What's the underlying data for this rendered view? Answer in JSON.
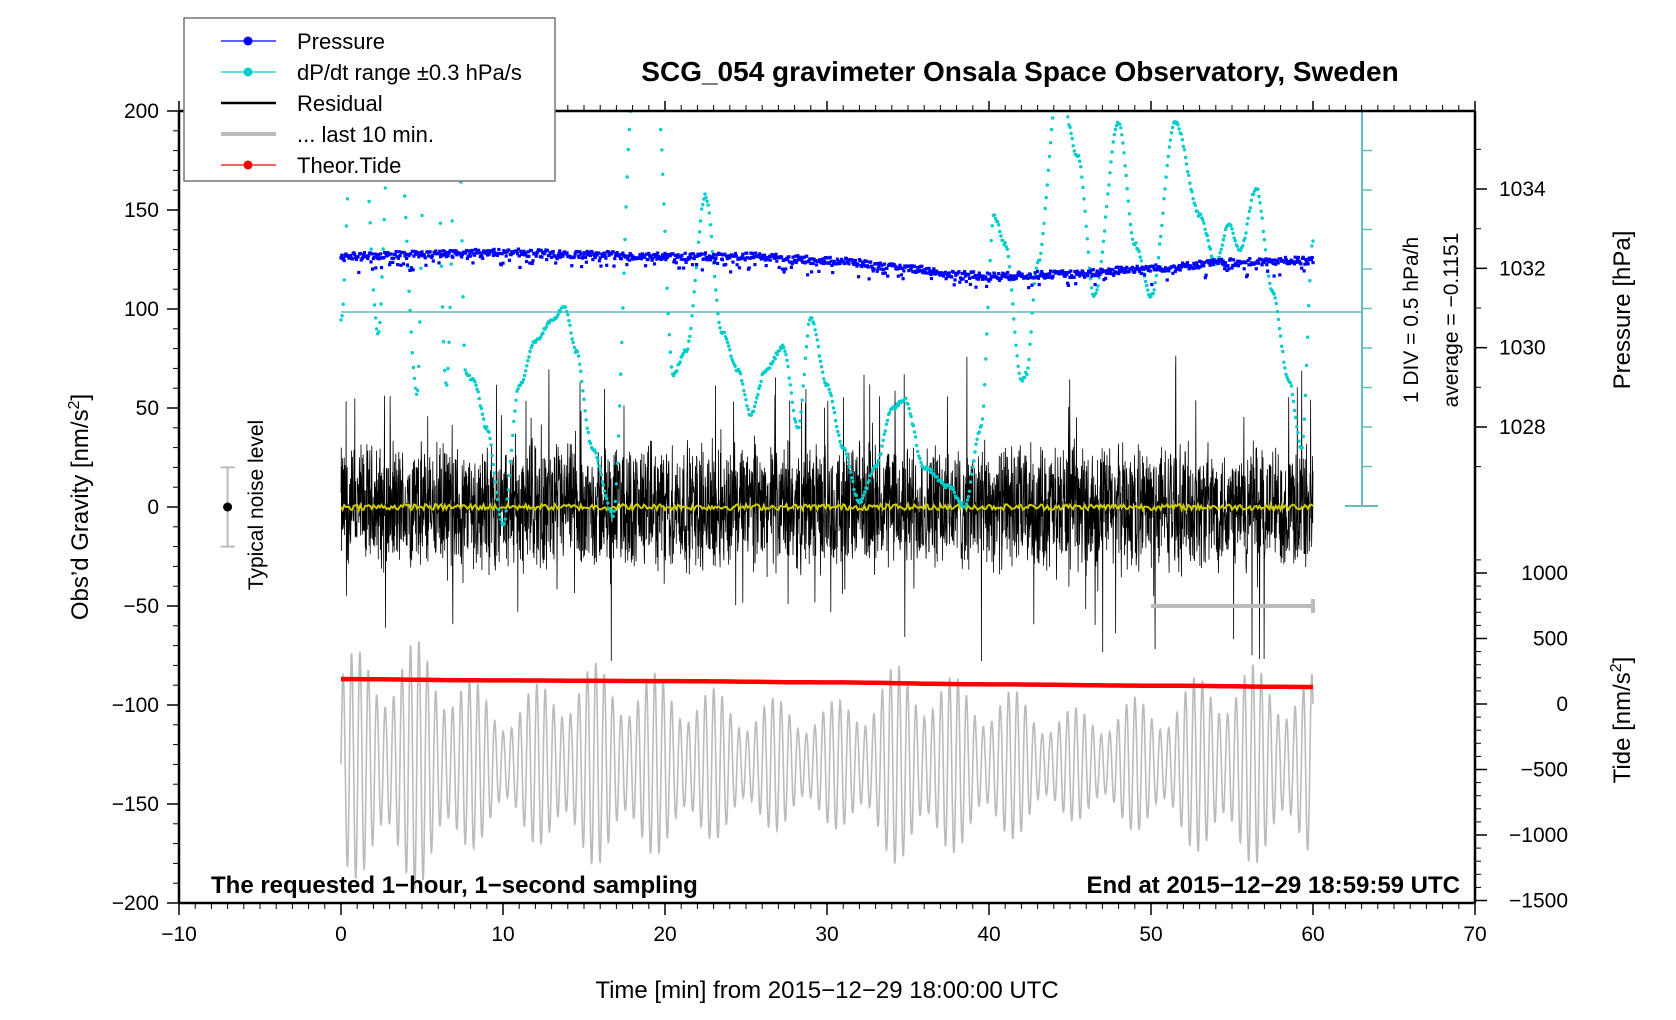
{
  "chart_data": {
    "type": "line",
    "title": "SCG_054 gravimeter Onsala Space Observatory, Sweden",
    "xlabel": "Time [min] from 2015−12−29 18:00:00 UTC",
    "ylabel": "Obs’d Gravity [nm/s²]",
    "ylabel_main": "Obs’d Gravity [nm/s",
    "ylabel_sup": "2",
    "ylabel_end": "]",
    "xlim": [
      -10,
      70
    ],
    "ylim": [
      -200,
      200
    ],
    "x_ticks": [
      -10,
      0,
      10,
      20,
      30,
      40,
      50,
      60,
      70
    ],
    "x_tick_labels": [
      "−10",
      "0",
      "10",
      "20",
      "30",
      "40",
      "50",
      "60",
      "70"
    ],
    "y_ticks": [
      -200,
      -150,
      -100,
      -50,
      0,
      50,
      100,
      150,
      200
    ],
    "y_tick_labels": [
      "−200",
      "−150",
      "−100",
      "−50",
      "0",
      "50",
      "100",
      "150",
      "200"
    ],
    "pressure_axis": {
      "label": "Pressure [hPa]",
      "ticks": [
        1028,
        1030,
        1032,
        1034
      ],
      "tick_labels": [
        "1028",
        "1030",
        "1032",
        "1034"
      ],
      "range": [
        1026.0,
        1035.9
      ]
    },
    "tide_axis": {
      "label_main": "Tide [nm/s",
      "label_sup": "2",
      "label_end": "]",
      "ticks": [
        -1500,
        -1000,
        -500,
        0,
        500,
        1000
      ],
      "tick_labels": [
        "−1500",
        "−1000",
        "−500",
        "0",
        "500",
        "1000"
      ],
      "range": [
        -1500,
        1100
      ]
    },
    "dpdt_scale": {
      "div_label": "1 DIV = 0.5 hPa/h",
      "average_label": "average = −0.1151",
      "divisions": 9
    },
    "noise_level": {
      "label": "Typical noise level",
      "x": -7,
      "center": 0,
      "half_range": 20
    },
    "last10_bar": {
      "x_start": 50,
      "x_end": 60,
      "y": -50
    },
    "annotations": {
      "bottom_left": "The requested 1−hour, 1−second sampling",
      "bottom_right": "End at 2015−12−29 18:59:59 UTC"
    },
    "legend": {
      "position": "top-left",
      "entries": [
        {
          "label": "Pressure",
          "color": "#0000ff",
          "style": "line-dot"
        },
        {
          "label": "dP/dt range ±0.3 hPa/s",
          "color": "#00cccc",
          "style": "line-dot"
        },
        {
          "label": "Residual",
          "color": "#000000",
          "style": "line"
        },
        {
          "label": "... last 10 min.",
          "color": "#bbbbbb",
          "style": "thick-line"
        },
        {
          "label": "Theor.Tide",
          "color": "#ff0000",
          "style": "line-dot"
        }
      ]
    },
    "series": [
      {
        "name": "Pressure",
        "unit": "hPa",
        "color": "#0000ff",
        "x": [
          0,
          5,
          10,
          15,
          20,
          25,
          30,
          35,
          38,
          40,
          45,
          50,
          55,
          60
        ],
        "values": [
          1032.3,
          1032.35,
          1032.4,
          1032.35,
          1032.3,
          1032.3,
          1032.2,
          1032.0,
          1031.85,
          1031.8,
          1031.85,
          1032.0,
          1032.15,
          1032.2
        ]
      },
      {
        "name": "dP/dt range",
        "unit": "nm/s²-equivalent scale",
        "color": "#00cccc",
        "x": [
          0,
          0.7,
          1.2,
          2.3,
          3.0,
          3.4,
          4.7,
          5.2,
          5.8,
          6.5,
          7.2,
          7.7,
          8.2,
          9.0,
          10.0,
          11.0,
          12.0,
          13.0,
          13.8,
          14.5,
          15.5,
          16.8,
          18.0,
          18.8,
          19.5,
          20.5,
          21.3,
          22.5,
          23.5,
          24.5,
          25.3,
          26.2,
          27.3,
          28.2,
          29.0,
          30.0,
          31.0,
          32.0,
          33.0,
          34.0,
          34.8,
          36.0,
          37.5,
          38.5,
          39.5,
          40.3,
          41.0,
          42.0,
          42.3,
          43.0,
          44.3,
          45.5,
          46.5,
          48.0,
          49.0,
          50.0,
          51.5,
          53.0,
          54.0,
          54.8,
          55.5,
          56.5,
          57.5,
          58.5,
          59.3,
          60.0
        ],
        "values": [
          95,
          200,
          220,
          88,
          200,
          220,
          58,
          200,
          220,
          62,
          220,
          68,
          65,
          40,
          -10,
          62,
          85,
          95,
          103,
          80,
          30,
          -5,
          210,
          220,
          215,
          68,
          80,
          160,
          90,
          70,
          47,
          70,
          82,
          40,
          97,
          62,
          30,
          2,
          20,
          50,
          55,
          20,
          10,
          0,
          40,
          150,
          135,
          65,
          68,
          125,
          218,
          180,
          108,
          198,
          135,
          108,
          198,
          150,
          125,
          145,
          132,
          164,
          110,
          65,
          30,
          137
        ]
      },
      {
        "name": "Residual",
        "unit": "nm/s²",
        "color": "#000000",
        "x_range": [
          0,
          60
        ],
        "typical_amplitude": 30,
        "peak_amplitude": 75,
        "smoothed_mean": 0
      },
      {
        "name": "... last 10 min.",
        "unit": "nm/s²",
        "color": "#bbbbbb",
        "x_range": [
          0,
          60
        ],
        "center": -130,
        "amplitude": [
          50,
          55,
          30,
          45,
          40,
          30,
          28,
          45,
          35,
          25,
          30,
          45,
          40
        ]
      },
      {
        "name": "Theor.Tide",
        "unit": "nm/s²",
        "color": "#ff0000",
        "x": [
          0,
          10,
          20,
          30,
          40,
          50,
          60
        ],
        "values": [
          190,
          180,
          175,
          165,
          150,
          140,
          130
        ]
      }
    ],
    "colors": {
      "pressure": "#0000ff",
      "dpdt": "#00cccc",
      "dpdt_axis": "#66bbbb",
      "residual": "#000000",
      "smoothed": "#cccc00",
      "last10": "#bbbbbb",
      "tide": "#ff0000",
      "noise_bar": "#bbbbbb"
    }
  }
}
